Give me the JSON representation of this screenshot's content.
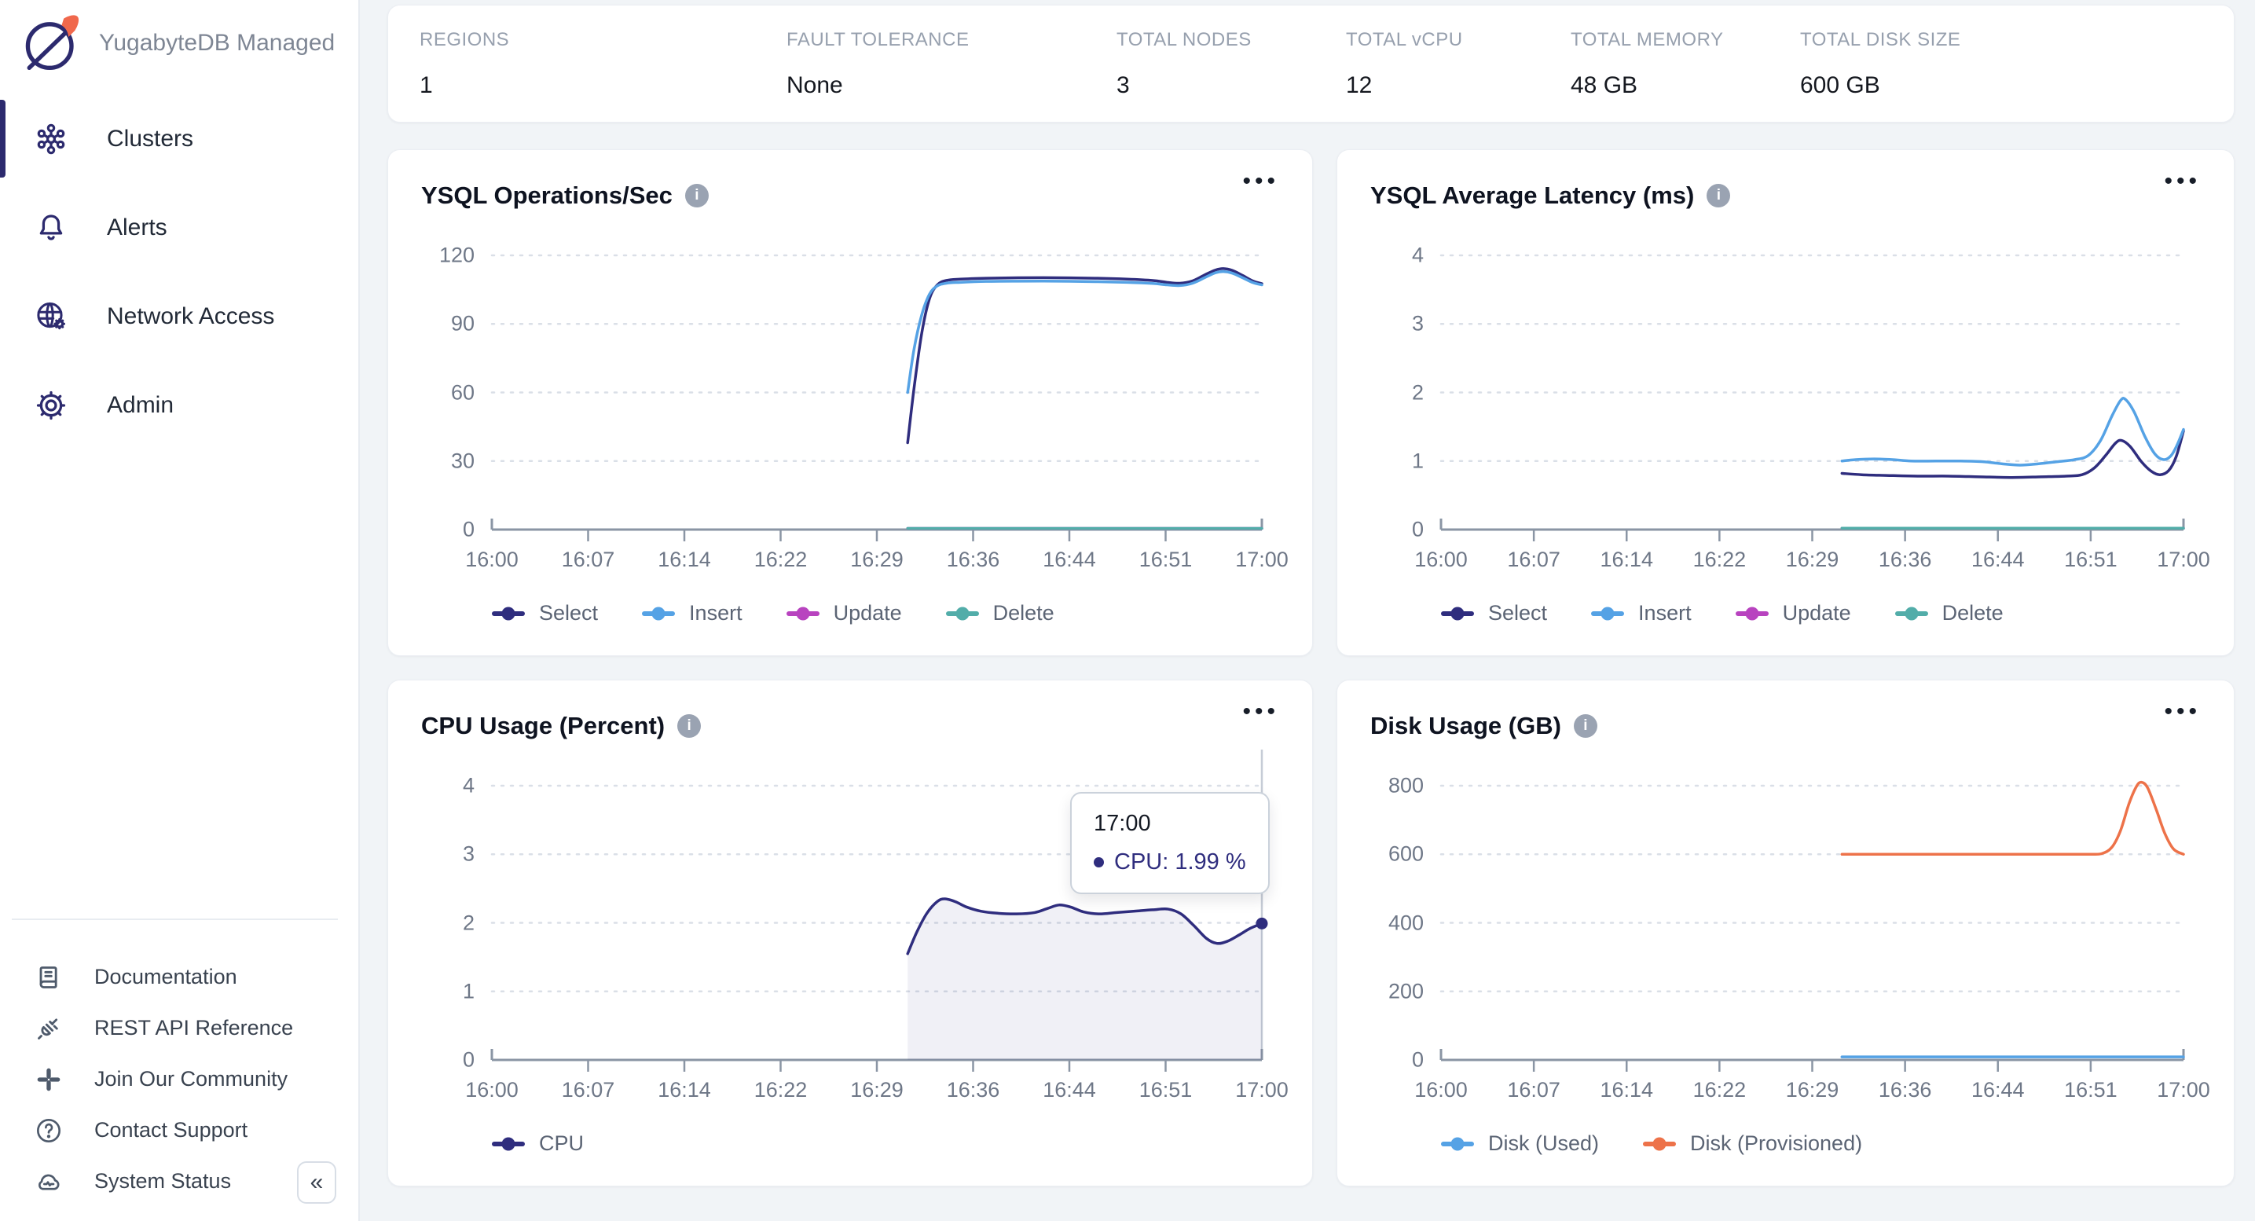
{
  "sidebar": {
    "brand": "YugabyteDB Managed",
    "nav": [
      {
        "id": "clusters",
        "label": "Clusters",
        "icon": "clusters",
        "active": true
      },
      {
        "id": "alerts",
        "label": "Alerts",
        "icon": "bell",
        "active": false
      },
      {
        "id": "network-access",
        "label": "Network Access",
        "icon": "globe-gear",
        "active": false
      },
      {
        "id": "admin",
        "label": "Admin",
        "icon": "gear",
        "active": false
      }
    ],
    "footer_links": [
      {
        "id": "documentation",
        "label": "Documentation",
        "icon": "book"
      },
      {
        "id": "rest-api-reference",
        "label": "REST API Reference",
        "icon": "plug"
      },
      {
        "id": "join-our-community",
        "label": "Join Our Community",
        "icon": "community"
      },
      {
        "id": "contact-support",
        "label": "Contact Support",
        "icon": "help"
      },
      {
        "id": "system-status",
        "label": "System Status",
        "icon": "cloud-status"
      }
    ],
    "collapse_icon": "«"
  },
  "stats": [
    {
      "label": "REGIONS",
      "value": "1"
    },
    {
      "label": "FAULT TOLERANCE",
      "value": "None"
    },
    {
      "label": "TOTAL NODES",
      "value": "3"
    },
    {
      "label": "TOTAL vCPU",
      "value": "12"
    },
    {
      "label": "TOTAL MEMORY",
      "value": "48 GB"
    },
    {
      "label": "TOTAL DISK SIZE",
      "value": "600 GB"
    }
  ],
  "menu_dots": "•••",
  "info_glyph": "i",
  "chart_data": [
    {
      "id": "ysql-ops",
      "type": "line",
      "title": "YSQL Operations/Sec",
      "x_ticks": [
        "16:00",
        "16:07",
        "16:14",
        "16:22",
        "16:29",
        "16:36",
        "16:44",
        "16:51",
        "17:00"
      ],
      "x_range_minutes": [
        0,
        60
      ],
      "y_ticks": [
        0,
        30,
        60,
        90,
        120
      ],
      "y_max_tick": 120,
      "grid": "dotted",
      "legend_position": "bottom",
      "series": [
        {
          "name": "Select",
          "color": "#2F2D7E",
          "points": [
            [
              32.4,
              38
            ],
            [
              32.9,
              62
            ],
            [
              33.5,
              86
            ],
            [
              34.1,
              101
            ],
            [
              34.7,
              107
            ],
            [
              35.4,
              109
            ],
            [
              36.5,
              109.6
            ],
            [
              38.5,
              110
            ],
            [
              41,
              110.2
            ],
            [
              44,
              110.2
            ],
            [
              47,
              110
            ],
            [
              49.5,
              109.6
            ],
            [
              51.5,
              109
            ],
            [
              52.6,
              108.2
            ],
            [
              53.6,
              107.8
            ],
            [
              54.6,
              108.8
            ],
            [
              55.6,
              111.6
            ],
            [
              56.4,
              113.6
            ],
            [
              57,
              114.2
            ],
            [
              57.7,
              113.4
            ],
            [
              58.5,
              111.2
            ],
            [
              59.3,
              108.8
            ],
            [
              60,
              107.6
            ]
          ]
        },
        {
          "name": "Insert",
          "color": "#55A2E5",
          "points": [
            [
              32.4,
              60
            ],
            [
              32.9,
              79
            ],
            [
              33.5,
              94
            ],
            [
              34.1,
              103
            ],
            [
              34.7,
              106.6
            ],
            [
              35.4,
              107.8
            ],
            [
              36.5,
              108.2
            ],
            [
              38.5,
              108.6
            ],
            [
              41,
              108.7
            ],
            [
              44,
              108.7
            ],
            [
              47,
              108.5
            ],
            [
              49.5,
              108.2
            ],
            [
              51.5,
              107.7
            ],
            [
              52.6,
              107.1
            ],
            [
              53.6,
              106.8
            ],
            [
              54.6,
              107.8
            ],
            [
              55.6,
              110.4
            ],
            [
              56.4,
              112.4
            ],
            [
              57,
              112.9
            ],
            [
              57.7,
              112.2
            ],
            [
              58.5,
              110.2
            ],
            [
              59.3,
              108.1
            ],
            [
              60,
              107.1
            ]
          ]
        },
        {
          "name": "Update",
          "color": "#B843BF",
          "points": [
            [
              32.4,
              0.5
            ],
            [
              60,
              0.5
            ]
          ]
        },
        {
          "name": "Delete",
          "color": "#52ADA9",
          "points": [
            [
              32.4,
              0.5
            ],
            [
              60,
              0.5
            ]
          ]
        }
      ]
    },
    {
      "id": "ysql-latency",
      "type": "line",
      "title": "YSQL Average Latency (ms)",
      "x_ticks": [
        "16:00",
        "16:07",
        "16:14",
        "16:22",
        "16:29",
        "16:36",
        "16:44",
        "16:51",
        "17:00"
      ],
      "x_range_minutes": [
        0,
        60
      ],
      "y_ticks": [
        0,
        1,
        2,
        3,
        4
      ],
      "y_max_tick": 4,
      "grid": "dotted",
      "legend_position": "bottom",
      "series": [
        {
          "name": "Select",
          "color": "#2F2D7E",
          "points": [
            [
              32.4,
              0.82
            ],
            [
              34,
              0.8
            ],
            [
              36,
              0.79
            ],
            [
              38.5,
              0.78
            ],
            [
              41,
              0.78
            ],
            [
              43.5,
              0.77
            ],
            [
              46,
              0.76
            ],
            [
              48.5,
              0.77
            ],
            [
              50.5,
              0.78
            ],
            [
              51.8,
              0.8
            ],
            [
              52.8,
              0.9
            ],
            [
              53.7,
              1.08
            ],
            [
              54.5,
              1.26
            ],
            [
              55,
              1.3
            ],
            [
              55.7,
              1.21
            ],
            [
              56.6,
              0.99
            ],
            [
              57.4,
              0.85
            ],
            [
              58.1,
              0.8
            ],
            [
              58.8,
              0.86
            ],
            [
              59.4,
              1.06
            ],
            [
              60,
              1.44
            ]
          ]
        },
        {
          "name": "Insert",
          "color": "#55A2E5",
          "points": [
            [
              32.4,
              1.0
            ],
            [
              33.5,
              1.02
            ],
            [
              35,
              1.03
            ],
            [
              36.5,
              1.02
            ],
            [
              38,
              1.0
            ],
            [
              40,
              1.0
            ],
            [
              42,
              1.0
            ],
            [
              43.8,
              0.99
            ],
            [
              45.3,
              0.96
            ],
            [
              46.8,
              0.94
            ],
            [
              48.3,
              0.96
            ],
            [
              49.8,
              0.99
            ],
            [
              51.2,
              1.02
            ],
            [
              52.3,
              1.08
            ],
            [
              53.3,
              1.3
            ],
            [
              54.2,
              1.65
            ],
            [
              54.9,
              1.88
            ],
            [
              55.3,
              1.9
            ],
            [
              56,
              1.72
            ],
            [
              56.9,
              1.35
            ],
            [
              57.7,
              1.1
            ],
            [
              58.4,
              1.02
            ],
            [
              59,
              1.08
            ],
            [
              59.5,
              1.24
            ],
            [
              60,
              1.46
            ]
          ]
        },
        {
          "name": "Update",
          "color": "#B843BF",
          "points": [
            [
              32.4,
              0.02
            ],
            [
              60,
              0.02
            ]
          ]
        },
        {
          "name": "Delete",
          "color": "#52ADA9",
          "points": [
            [
              32.4,
              0.02
            ],
            [
              60,
              0.02
            ]
          ]
        }
      ]
    },
    {
      "id": "cpu-usage",
      "type": "area",
      "title": "CPU Usage (Percent)",
      "x_ticks": [
        "16:00",
        "16:07",
        "16:14",
        "16:22",
        "16:29",
        "16:36",
        "16:44",
        "16:51",
        "17:00"
      ],
      "x_range_minutes": [
        0,
        60
      ],
      "y_ticks": [
        0,
        1,
        2,
        3,
        4
      ],
      "y_max_tick": 4,
      "grid": "dotted",
      "legend_position": "bottom",
      "crosshair_minute": 60,
      "tooltip": {
        "time": "17:00",
        "series": "CPU",
        "value": "CPU: 1.99 %"
      },
      "series": [
        {
          "name": "CPU",
          "color": "#2F2D7E",
          "fill": "rgba(47,45,126,0.07)",
          "end_dot": true,
          "points": [
            [
              32.4,
              1.55
            ],
            [
              33.1,
              1.86
            ],
            [
              33.9,
              2.14
            ],
            [
              34.7,
              2.31
            ],
            [
              35.3,
              2.35
            ],
            [
              36.1,
              2.31
            ],
            [
              37,
              2.23
            ],
            [
              38.1,
              2.17
            ],
            [
              39.4,
              2.14
            ],
            [
              40.9,
              2.13
            ],
            [
              42.3,
              2.15
            ],
            [
              43.3,
              2.21
            ],
            [
              44.2,
              2.26
            ],
            [
              45.1,
              2.23
            ],
            [
              46.1,
              2.16
            ],
            [
              47.3,
              2.13
            ],
            [
              48.7,
              2.15
            ],
            [
              50.1,
              2.17
            ],
            [
              51.5,
              2.19
            ],
            [
              52.7,
              2.2
            ],
            [
              53.7,
              2.13
            ],
            [
              54.7,
              1.96
            ],
            [
              55.7,
              1.77
            ],
            [
              56.5,
              1.7
            ],
            [
              57.3,
              1.73
            ],
            [
              58.2,
              1.82
            ],
            [
              59.1,
              1.92
            ],
            [
              60,
              1.99
            ]
          ]
        }
      ]
    },
    {
      "id": "disk-usage",
      "type": "line",
      "title": "Disk Usage (GB)",
      "x_ticks": [
        "16:00",
        "16:07",
        "16:14",
        "16:22",
        "16:29",
        "16:36",
        "16:44",
        "16:51",
        "17:00"
      ],
      "x_range_minutes": [
        0,
        60
      ],
      "y_ticks": [
        0,
        200,
        400,
        600,
        800
      ],
      "y_max_tick": 800,
      "grid": "dotted",
      "legend_position": "bottom",
      "series": [
        {
          "name": "Disk (Used)",
          "color": "#55A2E5",
          "points": [
            [
              32.4,
              9
            ],
            [
              60,
              9
            ]
          ]
        },
        {
          "name": "Disk (Provisioned)",
          "color": "#ED7249",
          "points": [
            [
              32.4,
              600
            ],
            [
              44,
              600
            ],
            [
              50,
              600
            ],
            [
              52.4,
              600
            ],
            [
              53.4,
              602
            ],
            [
              54.2,
              620
            ],
            [
              54.9,
              668
            ],
            [
              55.6,
              748
            ],
            [
              56.2,
              798
            ],
            [
              56.6,
              810
            ],
            [
              57.1,
              794
            ],
            [
              57.8,
              730
            ],
            [
              58.5,
              660
            ],
            [
              59.2,
              615
            ],
            [
              60,
              600
            ]
          ]
        }
      ]
    }
  ]
}
